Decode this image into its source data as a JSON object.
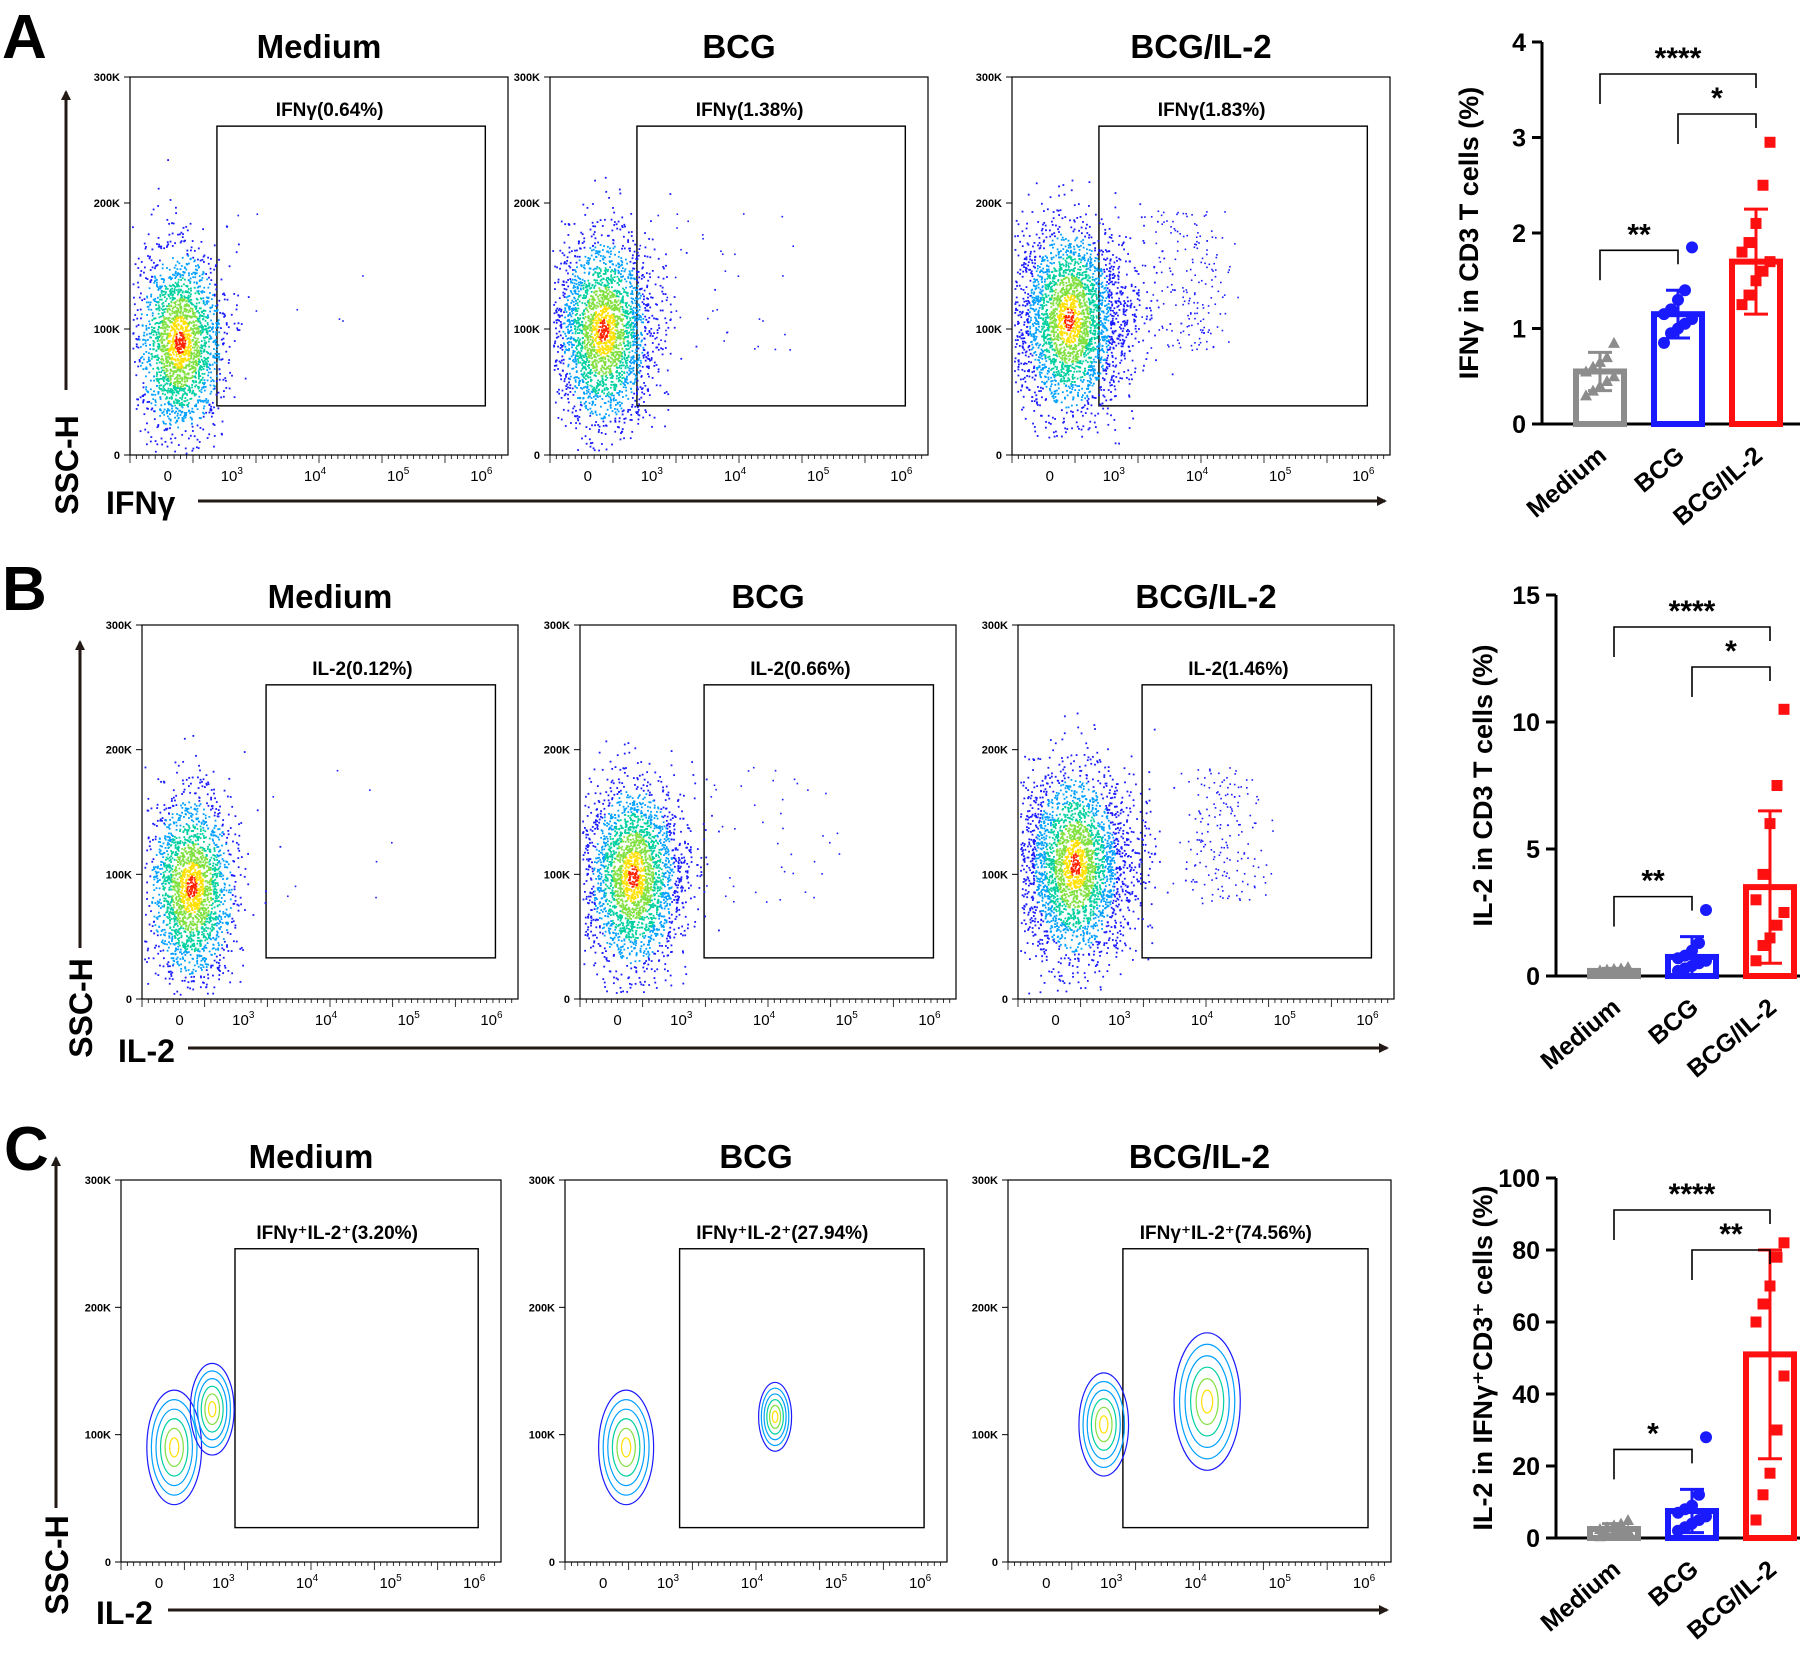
{
  "colors": {
    "medium": "#8c8c8c",
    "bcg": "#1a1aff",
    "bcg_il2": "#ff1010",
    "axis": "#000000",
    "arrow": "#231a15"
  },
  "axis_labels": {
    "ssc": "SSC-H",
    "ifng": "IFNγ",
    "il2": "IL-2"
  },
  "flow_axis_ticks": {
    "y": [
      "300K",
      "200K",
      "100K",
      "0"
    ],
    "x_zero": "0",
    "x_base": "10",
    "x_exp": [
      "3",
      "4",
      "5",
      "6"
    ]
  },
  "panels": [
    {
      "letter": "A",
      "x_marker": "IFNγ",
      "plot_style": "dot",
      "flow_plots": [
        {
          "title": "Medium",
          "gate_label": "IFNγ(0.64%)"
        },
        {
          "title": "BCG",
          "gate_label": "IFNγ(1.38%)"
        },
        {
          "title": "BCG/IL-2",
          "gate_label": "IFNγ(1.83%)"
        }
      ],
      "chart_data": {
        "type": "bar",
        "categories": [
          "Medium",
          "BCG",
          "BCG/IL-2"
        ],
        "values": [
          0.55,
          1.15,
          1.7
        ],
        "errors": [
          0.2,
          0.25,
          0.55
        ],
        "points": [
          [
            0.3,
            0.35,
            0.4,
            0.45,
            0.5,
            0.55,
            0.6,
            0.65,
            0.7,
            0.85
          ],
          [
            0.85,
            0.95,
            1.0,
            1.05,
            1.1,
            1.15,
            1.2,
            1.3,
            1.4,
            1.85
          ],
          [
            1.25,
            1.35,
            1.5,
            1.6,
            1.7,
            1.8,
            1.9,
            2.1,
            2.5,
            2.95
          ]
        ],
        "ylabel": "IFNγ in CD3 T cells (%)",
        "ylim": [
          0,
          4
        ],
        "yticks": [
          "0",
          "1",
          "2",
          "3",
          "4"
        ],
        "significance": [
          {
            "from": 0,
            "to": 1,
            "label": "**"
          },
          {
            "from": 1,
            "to": 2,
            "label": "*"
          },
          {
            "from": 0,
            "to": 2,
            "label": "****"
          }
        ]
      }
    },
    {
      "letter": "B",
      "x_marker": "IL-2",
      "plot_style": "dot",
      "flow_plots": [
        {
          "title": "Medium",
          "gate_label": "IL-2(0.12%)"
        },
        {
          "title": "BCG",
          "gate_label": "IL-2(0.66%)"
        },
        {
          "title": "BCG/IL-2",
          "gate_label": "IL-2(1.46%)"
        }
      ],
      "chart_data": {
        "type": "bar",
        "categories": [
          "Medium",
          "BCG",
          "BCG/IL-2"
        ],
        "values": [
          0.2,
          0.75,
          3.5
        ],
        "errors": [
          0.1,
          0.8,
          3.0
        ],
        "points": [
          [
            0.1,
            0.12,
            0.15,
            0.18,
            0.2,
            0.22,
            0.25,
            0.28,
            0.3,
            0.35
          ],
          [
            0.2,
            0.3,
            0.4,
            0.5,
            0.6,
            0.7,
            0.8,
            1.0,
            1.3,
            2.6
          ],
          [
            0.6,
            1.2,
            1.5,
            2.0,
            2.5,
            3.0,
            4.0,
            6.0,
            7.5,
            10.5
          ]
        ],
        "ylabel": "IL-2 in CD3 T cells (%)",
        "ylim": [
          0,
          15
        ],
        "yticks": [
          "0",
          "5",
          "10",
          "15"
        ],
        "significance": [
          {
            "from": 0,
            "to": 1,
            "label": "**"
          },
          {
            "from": 1,
            "to": 2,
            "label": "*"
          },
          {
            "from": 0,
            "to": 2,
            "label": "****"
          }
        ]
      }
    },
    {
      "letter": "C",
      "x_marker": "IL-2",
      "plot_style": "contour",
      "flow_plots": [
        {
          "title": "Medium",
          "gate_label": "IFNγ⁺IL-2⁺(3.20%)"
        },
        {
          "title": "BCG",
          "gate_label": "IFNγ⁺IL-2⁺(27.94%)"
        },
        {
          "title": "BCG/IL-2",
          "gate_label": "IFNγ⁺IL-2⁺(74.56%)"
        }
      ],
      "chart_data": {
        "type": "bar",
        "categories": [
          "Medium",
          "BCG",
          "BCG/IL-2"
        ],
        "values": [
          2.5,
          7.5,
          51
        ],
        "errors": [
          1.5,
          6.0,
          29.0
        ],
        "points": [
          [
            0.5,
            1.0,
            1.5,
            2.0,
            2.2,
            2.5,
            3.0,
            3.5,
            4.0,
            5.0
          ],
          [
            2.0,
            3.0,
            4.0,
            5.0,
            6.0,
            7.0,
            8.0,
            9.0,
            12.0,
            28.0
          ],
          [
            5.0,
            12.0,
            18.0,
            30.0,
            45.0,
            60.0,
            65.0,
            70.0,
            78.0,
            82.0
          ]
        ],
        "ylabel": "IL-2 in IFNγ⁺CD3⁺ cells (%)",
        "ylim": [
          0,
          100
        ],
        "yticks": [
          "0",
          "20",
          "40",
          "60",
          "80",
          "100"
        ],
        "significance": [
          {
            "from": 0,
            "to": 1,
            "label": "*"
          },
          {
            "from": 1,
            "to": 2,
            "label": "**"
          },
          {
            "from": 0,
            "to": 2,
            "label": "****"
          }
        ]
      }
    }
  ]
}
